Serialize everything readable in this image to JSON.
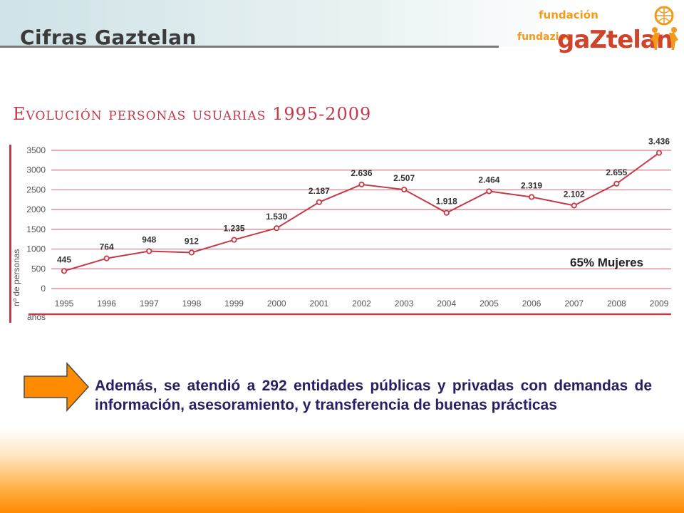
{
  "slide": {
    "title": "Cifras Gaztelan"
  },
  "logo": {
    "line1": "fundación",
    "line2": "fundazioa",
    "brand": "gaZtelan"
  },
  "note": {
    "text": "Además, se atendió a 292 entidades públicas y privadas con demandas de información, asesoramiento, y transferencia de buenas prácticas"
  },
  "colors": {
    "accent": "#c53a48",
    "text_dark": "#2a1d63",
    "arrow_fill": "#ff8c00",
    "footer_orange": "#ff8a00"
  },
  "chart_data": {
    "type": "line",
    "title": "Evolución personas usuarias 1995-2009",
    "ylabel": "nº de personas",
    "xlabel": "años",
    "ylim": [
      0,
      3500
    ],
    "yticks": [
      "0",
      "500",
      "1000",
      "1500",
      "2000",
      "2500",
      "3000",
      "3500"
    ],
    "categories": [
      "1995",
      "1996",
      "1997",
      "1998",
      "1999",
      "2000",
      "2001",
      "2002",
      "2003",
      "2004",
      "2005",
      "2006",
      "2007",
      "2008",
      "2009"
    ],
    "values": [
      445,
      764,
      948,
      912,
      1235,
      1530,
      2187,
      2636,
      2507,
      1918,
      2464,
      2319,
      2102,
      2655,
      3436
    ],
    "data_labels": [
      "445",
      "764",
      "948",
      "912",
      "1.235",
      "1.530",
      "2.187",
      "2.636",
      "2.507",
      "1.918",
      "2.464",
      "2.319",
      "2.102",
      "2.655",
      "3.436"
    ],
    "annotation": "65% Mujeres",
    "grid": true
  }
}
